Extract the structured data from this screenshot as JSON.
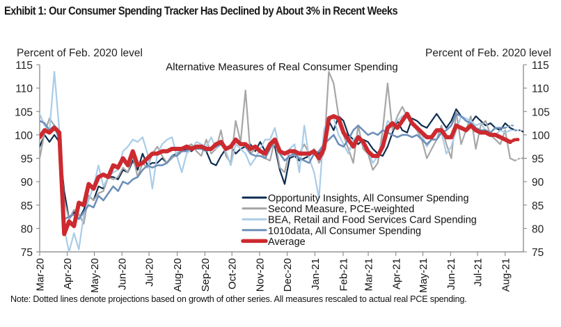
{
  "title": "Exhibit 1: Our Consumer Spending Tracker Has Declined by About 3% in Recent Weeks",
  "note": "Note: Dotted lines denote projections based on growth of other series. All measures rescaled to actual real PCE spending.",
  "chart_data": {
    "type": "line",
    "title": "Alternative Measures of Real Consumer Spending",
    "ylabel_left": "Percent of Feb. 2020 level",
    "ylabel_right": "Percent of Feb. 2020 level",
    "xlabel": "",
    "ylim": [
      75,
      115
    ],
    "yticks": [
      75,
      80,
      85,
      90,
      95,
      100,
      105,
      110,
      115
    ],
    "x_unit": "weeks since start of Mar-20",
    "xlim": [
      0,
      77
    ],
    "x_tick_labels": [
      "Mar-20",
      "Apr-20",
      "May-20",
      "Jun-20",
      "Jul-20",
      "Aug-20",
      "Sep-20",
      "Oct-20",
      "Nov-20",
      "Dec-20",
      "Jan-21",
      "Feb-21",
      "Mar-21",
      "Apr-21",
      "May-21",
      "Jun-21",
      "Jul-21",
      "Aug-21"
    ],
    "x_tick_weeks": [
      0,
      4.4,
      8.7,
      13.1,
      17.4,
      21.9,
      26.3,
      30.6,
      35.0,
      39.4,
      43.8,
      48.3,
      52.3,
      56.7,
      61.0,
      65.4,
      69.7,
      74.1
    ],
    "legend_position": "lower-center",
    "grid": false,
    "series": [
      {
        "name": "Opportunity Insights, All Consumer Spending",
        "color": "#0d2c4f",
        "width": 2.2,
        "values": [
          97.5,
          100,
          98.5,
          100,
          98.5,
          88,
          82,
          83.5,
          82,
          84,
          87,
          86,
          89,
          88.5,
          91,
          91,
          90.5,
          92.5,
          92,
          94.5,
          92.5,
          96,
          93.5,
          94,
          94,
          95,
          94,
          95.5,
          96,
          96.5,
          97,
          96.5,
          97.5,
          97,
          96.5,
          94,
          93.5,
          95.5,
          97,
          97.5,
          96,
          97,
          97.5,
          98,
          96.5,
          98.5,
          96.5,
          98,
          97.5,
          92.5,
          89.5,
          95,
          95.5,
          94.5,
          95,
          95.5,
          96.5,
          96,
          97,
          103,
          101,
          104,
          103,
          100,
          99,
          98,
          99,
          98.5,
          97,
          96,
          95.5,
          97.5,
          100.5,
          103,
          101,
          100.5,
          103.5,
          103,
          102,
          101.5,
          103,
          104.5,
          103,
          101.5,
          103,
          105.5,
          104,
          103,
          102.5,
          104,
          103,
          102,
          102.5,
          101.5,
          101,
          102.5,
          101.5,
          101
        ],
        "projection": [
          101,
          100.5
        ]
      },
      {
        "name": "Second Measure, PCE-weighted",
        "color": "#a6a6a6",
        "width": 2.2,
        "values": [
          95,
          100.5,
          103.5,
          102,
          101,
          86,
          82,
          84,
          83,
          81,
          87,
          86,
          87.5,
          88,
          91,
          90.5,
          91,
          93,
          92,
          95.5,
          91,
          94,
          93,
          96,
          97.5,
          95.5,
          94,
          95,
          96,
          97,
          97.5,
          98,
          96.5,
          95.5,
          99,
          96,
          97,
          101,
          95.5,
          94,
          103,
          98.5,
          109.5,
          96,
          97,
          96.5,
          95,
          94.5,
          99,
          93,
          92,
          97,
          95.5,
          96,
          98,
          96,
          97,
          94,
          96,
          113.5,
          111,
          104,
          100,
          97,
          94,
          102,
          97,
          96,
          92.5,
          94,
          101,
          111,
          101,
          104,
          106,
          104,
          103,
          101,
          99,
          95,
          97,
          99,
          102,
          98,
          95,
          105,
          98,
          101,
          104,
          97,
          102,
          103,
          100,
          99,
          98,
          101,
          95,
          94.5
        ],
        "projection": [
          95,
          95
        ]
      },
      {
        "name": "BEA, Retail and Food Services Card Spending",
        "color": "#a9cce8",
        "width": 2.2,
        "values": [
          104.5,
          102,
          101,
          113.5,
          101,
          80,
          75,
          79,
          75.5,
          83,
          86,
          89,
          93.5,
          89,
          91,
          92,
          92.5,
          96.5,
          97.5,
          99,
          98.5,
          99.5,
          96,
          88.5,
          96,
          98,
          99,
          99.5,
          95.5,
          92,
          96,
          97,
          98.5,
          98,
          97.5,
          99.5,
          97,
          98,
          96.5,
          93.5,
          98,
          97,
          96,
          93.5,
          95,
          97,
          99,
          99,
          101.5,
          96.5,
          96,
          97,
          98,
          92,
          102,
          95,
          92,
          86.5,
          101,
          104,
          103.5,
          100,
          98,
          96,
          99,
          100,
          97.5,
          96.5,
          94,
          95.5,
          99,
          103,
          102,
          103,
          104,
          104.5,
          103,
          101,
          100,
          97.5,
          99,
          101,
          100.5,
          96,
          97.5,
          101,
          104,
          103.5,
          103,
          102,
          102.5,
          101,
          100.5,
          100,
          101,
          100.5,
          101
        ],
        "projection": [
          101,
          101
        ]
      },
      {
        "name": "1010data, All Consumer Spending",
        "color": "#6d8fba",
        "width": 2.6,
        "values": [
          103,
          102.5,
          101,
          102,
          99,
          82,
          82.5,
          83,
          82,
          83.5,
          85,
          84.5,
          87,
          86,
          87.5,
          89,
          88,
          90,
          89.5,
          90.5,
          91,
          92.5,
          93.5,
          93,
          93.5,
          93.5,
          94,
          95.5,
          95.5,
          96.5,
          96.5,
          97.5,
          97,
          97,
          96.5,
          97,
          97.5,
          98,
          97,
          97.5,
          99,
          98,
          97.5,
          96,
          95.5,
          95.5,
          95,
          97,
          99,
          96,
          94.5,
          95.5,
          96,
          95,
          94.5,
          94,
          96,
          96.5,
          98,
          99,
          100,
          98,
          97.5,
          99,
          101,
          102,
          101,
          100,
          100.5,
          100,
          101,
          100.5,
          100,
          99.5,
          100,
          100,
          99.5,
          100,
          99,
          98,
          99,
          99,
          100.5,
          101,
          102,
          104.5,
          104,
          103,
          102.5,
          101.5,
          101,
          101,
          100.5,
          101.5,
          101.5,
          101.5
        ],
        "projection": [
          102,
          102
        ]
      },
      {
        "name": "Average",
        "color": "#cc2a2f",
        "width": 6,
        "values": [
          99.5,
          101,
          100.5,
          101.5,
          100.5,
          78.8,
          81.5,
          80.5,
          85.5,
          85,
          89.5,
          88.5,
          91,
          91.5,
          91,
          93.5,
          93,
          95,
          93.5,
          96.5,
          93.5,
          94,
          95,
          96,
          96,
          96.5,
          96.5,
          97,
          97,
          97,
          97.5,
          97,
          97.5,
          97.5,
          97,
          97,
          98,
          98.5,
          97,
          97.5,
          99,
          98,
          98,
          97,
          97.5,
          96.5,
          96,
          98,
          99,
          96.5,
          96,
          96.5,
          96.5,
          96,
          96,
          96,
          96.5,
          95,
          97,
          103.5,
          104,
          103.5,
          100.5,
          99,
          97.5,
          99.5,
          98.5,
          96.5,
          95.5,
          95.5,
          97.5,
          101.5,
          102.5,
          101.5,
          103,
          104.5,
          102.5,
          101.5,
          100.5,
          99.5,
          99.5,
          101,
          101,
          99.5,
          99.5,
          102,
          101.5,
          101,
          102,
          101,
          100.5,
          100.5,
          100,
          100,
          99.5,
          99,
          98.5
        ],
        "projection": [
          99,
          99
        ]
      }
    ]
  }
}
